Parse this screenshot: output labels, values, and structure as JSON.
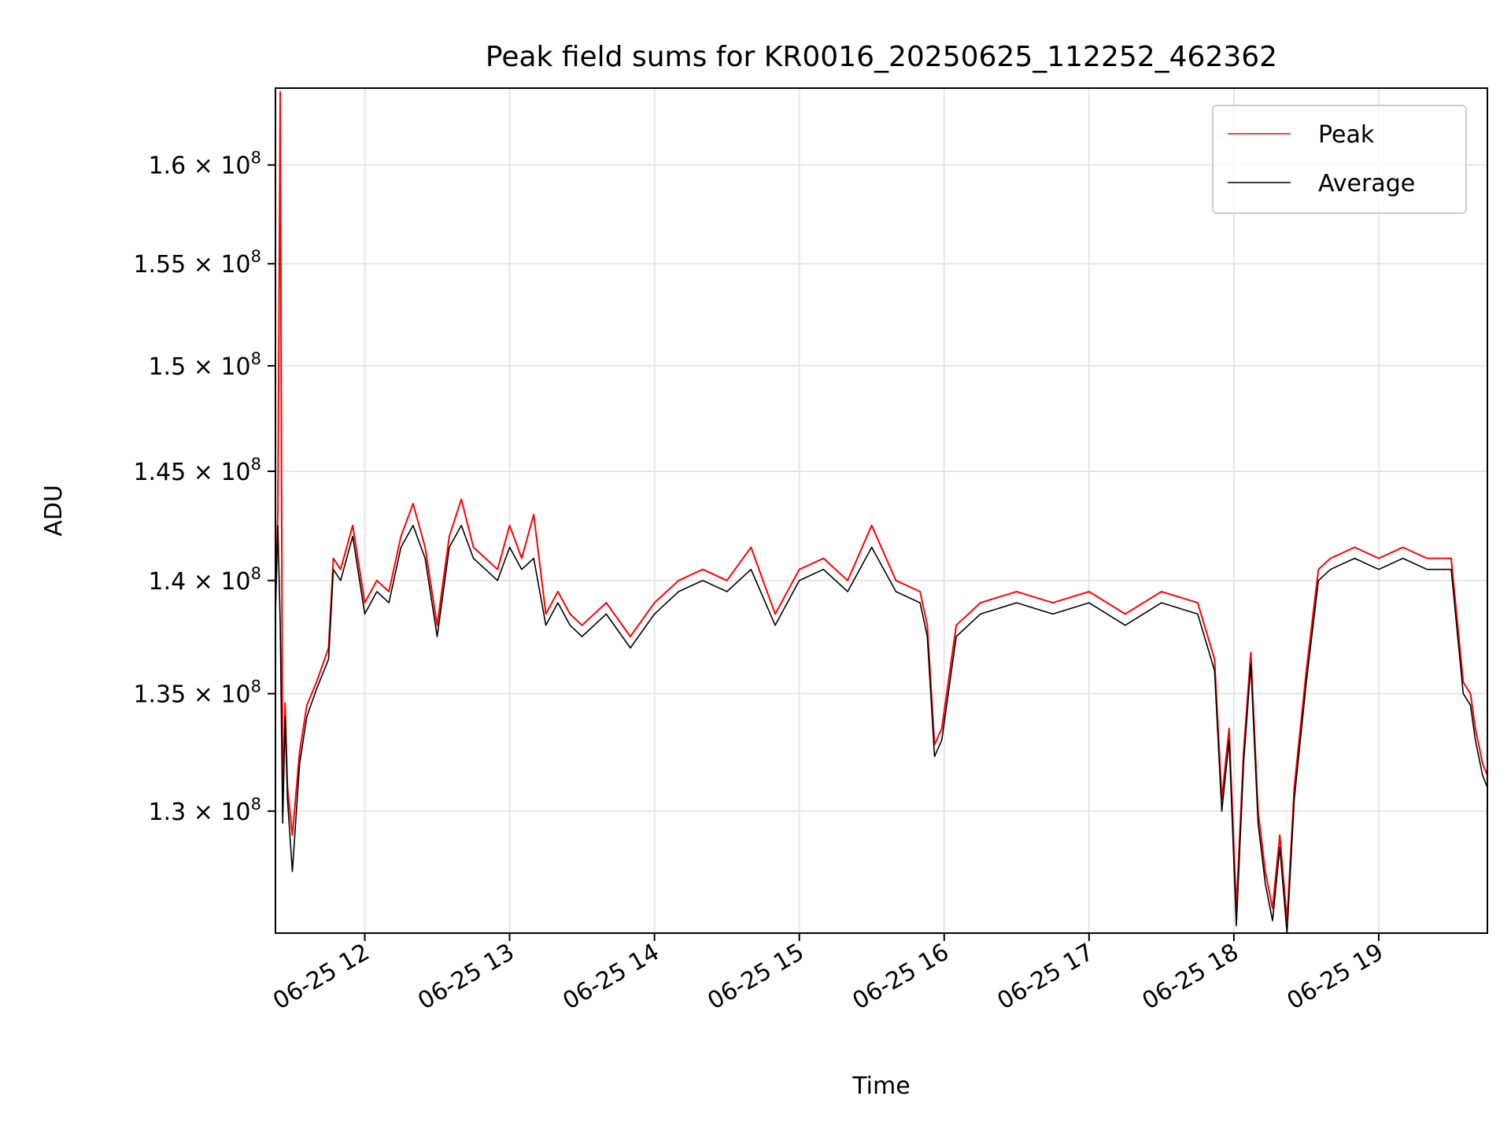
{
  "chart_data": {
    "type": "line",
    "title": "Peak field sums for KR0016_20250625_112252_462362",
    "xlabel": "Time",
    "ylabel": "ADU",
    "x_start": "06-25 11:23",
    "x_end": "06-25 19:45",
    "xlim": [
      "06-25 11:23",
      "06-25 19:45"
    ],
    "ylim": [
      125000000,
      164000000
    ],
    "y_scale": "log",
    "grid": true,
    "legend_position": "upper right",
    "x_ticks": [
      {
        "label": "06-25 12"
      },
      {
        "label": "06-25 13"
      },
      {
        "label": "06-25 14"
      },
      {
        "label": "06-25 15"
      },
      {
        "label": "06-25 16"
      },
      {
        "label": "06-25 17"
      },
      {
        "label": "06-25 18"
      },
      {
        "label": "06-25 19"
      }
    ],
    "y_ticks": [
      {
        "value": 130000000,
        "mantissa": "1.3",
        "exp": "8"
      },
      {
        "value": 135000000,
        "mantissa": "1.35",
        "exp": "8"
      },
      {
        "value": 140000000,
        "mantissa": "1.4",
        "exp": "8"
      },
      {
        "value": 145000000,
        "mantissa": "1.45",
        "exp": "8"
      },
      {
        "value": 150000000,
        "mantissa": "1.5",
        "exp": "8"
      },
      {
        "value": 155000000,
        "mantissa": "1.55",
        "exp": "8"
      },
      {
        "value": 160000000,
        "mantissa": "1.6",
        "exp": "8"
      }
    ],
    "times": [
      "06-25 11:23",
      "06-25 11:24",
      "06-25 11:25",
      "06-25 11:26",
      "06-25 11:27",
      "06-25 11:28",
      "06-25 11:30",
      "06-25 11:33",
      "06-25 11:36",
      "06-25 11:40",
      "06-25 11:45",
      "06-25 11:47",
      "06-25 11:50",
      "06-25 11:55",
      "06-25 12:00",
      "06-25 12:05",
      "06-25 12:10",
      "06-25 12:15",
      "06-25 12:20",
      "06-25 12:25",
      "06-25 12:30",
      "06-25 12:35",
      "06-25 12:40",
      "06-25 12:45",
      "06-25 12:50",
      "06-25 12:55",
      "06-25 13:00",
      "06-25 13:05",
      "06-25 13:10",
      "06-25 13:15",
      "06-25 13:20",
      "06-25 13:25",
      "06-25 13:30",
      "06-25 13:40",
      "06-25 13:50",
      "06-25 14:00",
      "06-25 14:10",
      "06-25 14:20",
      "06-25 14:30",
      "06-25 14:40",
      "06-25 14:50",
      "06-25 15:00",
      "06-25 15:10",
      "06-25 15:20",
      "06-25 15:30",
      "06-25 15:40",
      "06-25 15:50",
      "06-25 15:53",
      "06-25 15:56",
      "06-25 15:59",
      "06-25 16:05",
      "06-25 16:15",
      "06-25 16:30",
      "06-25 16:45",
      "06-25 17:00",
      "06-25 17:15",
      "06-25 17:30",
      "06-25 17:45",
      "06-25 17:52",
      "06-25 17:55",
      "06-25 17:58",
      "06-25 18:01",
      "06-25 18:04",
      "06-25 18:07",
      "06-25 18:10",
      "06-25 18:13",
      "06-25 18:16",
      "06-25 18:19",
      "06-25 18:22",
      "06-25 18:25",
      "06-25 18:30",
      "06-25 18:35",
      "06-25 18:40",
      "06-25 18:50",
      "06-25 19:00",
      "06-25 19:10",
      "06-25 19:20",
      "06-25 19:30",
      "06-25 19:35",
      "06-25 19:38",
      "06-25 19:40",
      "06-25 19:43",
      "06-25 19:45"
    ],
    "series": [
      {
        "name": "Peak",
        "color": "#ff0000",
        "values": [
          139000000,
          143200000,
          163800000,
          130000000,
          134600000,
          131000000,
          129000000,
          132500000,
          134500000,
          135500000,
          137000000,
          141000000,
          140500000,
          142500000,
          139000000,
          140000000,
          139500000,
          142000000,
          143500000,
          141500000,
          138000000,
          142000000,
          143700000,
          141500000,
          141000000,
          140500000,
          142500000,
          141000000,
          143000000,
          138500000,
          139500000,
          138500000,
          138000000,
          139000000,
          137500000,
          139000000,
          140000000,
          140500000,
          140000000,
          141500000,
          138500000,
          140500000,
          141000000,
          140000000,
          142500000,
          140000000,
          139500000,
          138000000,
          132800000,
          133500000,
          138000000,
          139000000,
          139500000,
          139000000,
          139500000,
          138500000,
          139500000,
          139000000,
          136500000,
          130500000,
          133500000,
          126000000,
          132500000,
          136800000,
          130000000,
          127500000,
          126000000,
          129000000,
          125500000,
          131000000,
          136000000,
          140500000,
          141000000,
          141500000,
          141000000,
          141500000,
          141000000,
          141000000,
          135500000,
          135000000,
          133500000,
          132000000,
          131500000
        ]
      },
      {
        "name": "Average",
        "color": "#000000",
        "values": [
          138500000,
          142500000,
          138000000,
          129500000,
          134000000,
          130500000,
          127500000,
          132000000,
          134000000,
          135200000,
          136500000,
          140500000,
          140000000,
          142000000,
          138500000,
          139500000,
          139000000,
          141500000,
          142500000,
          141000000,
          137500000,
          141500000,
          142500000,
          141000000,
          140500000,
          140000000,
          141500000,
          140500000,
          141000000,
          138000000,
          139000000,
          138000000,
          137500000,
          138500000,
          137000000,
          138500000,
          139500000,
          140000000,
          139500000,
          140500000,
          138000000,
          140000000,
          140500000,
          139500000,
          141500000,
          139500000,
          139000000,
          137500000,
          132300000,
          133000000,
          137500000,
          138500000,
          139000000,
          138500000,
          139000000,
          138000000,
          139000000,
          138500000,
          136000000,
          130000000,
          133000000,
          125300000,
          132000000,
          136300000,
          129500000,
          127000000,
          125500000,
          128500000,
          125000000,
          130500000,
          135500000,
          140000000,
          140500000,
          141000000,
          140500000,
          141000000,
          140500000,
          140500000,
          135000000,
          134500000,
          133000000,
          131500000,
          131000000
        ]
      }
    ]
  }
}
